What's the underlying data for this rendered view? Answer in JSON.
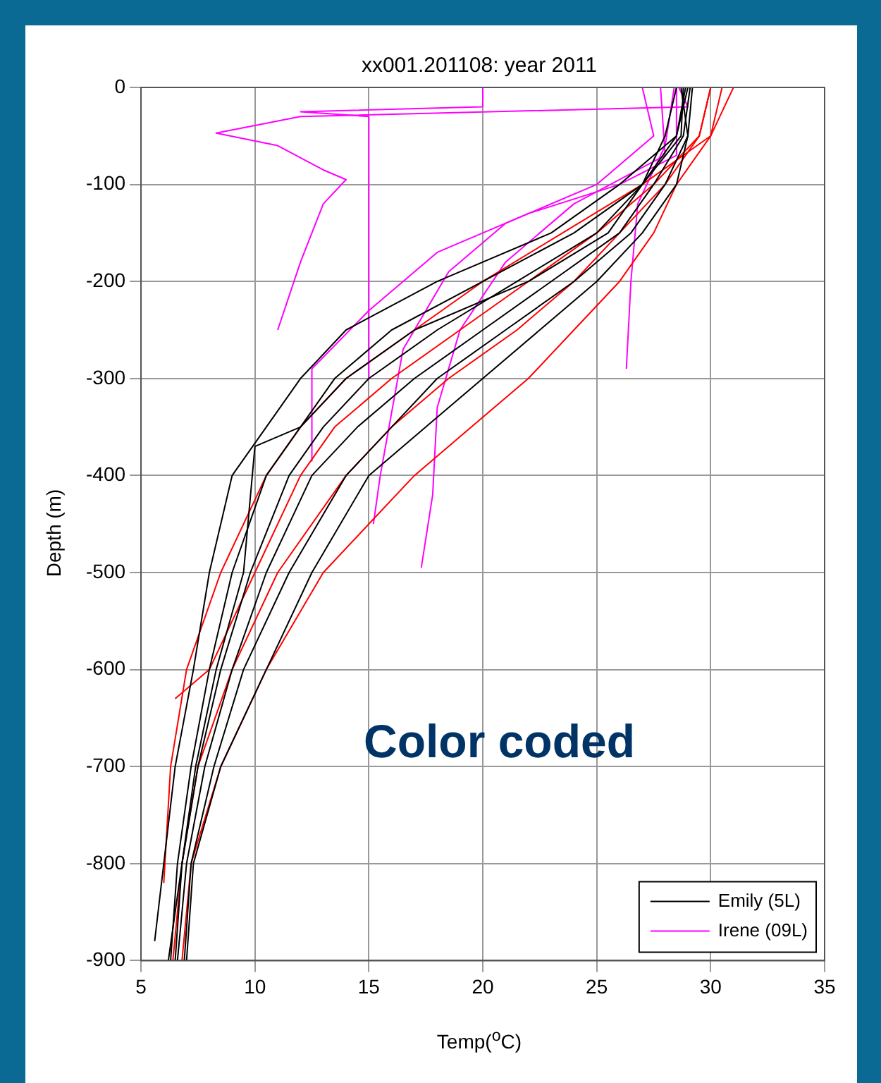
{
  "chart_data": {
    "type": "line",
    "title": "xx001.201108: year 2011",
    "xlabel": "Temp($^{o}$C)",
    "ylabel": "Depth (m)",
    "annotations": [
      "Color coded"
    ],
    "xlim": [
      5,
      35
    ],
    "xticks": [
      5,
      10,
      15,
      20,
      25,
      30,
      35
    ],
    "ylim": [
      -900,
      0
    ],
    "yticks": [
      -900,
      -800,
      -700,
      -600,
      -500,
      -400,
      -300,
      -200,
      -100,
      0
    ],
    "grid": true,
    "legend": "bottom right",
    "series": [
      {
        "name": "Emily (5L)",
        "color": "#000000",
        "x": [
          29,
          28.5,
          26,
          23,
          18,
          14,
          12,
          10.5,
          9,
          8,
          7.3,
          6.5,
          6,
          5.6
        ],
        "values": [
          0,
          -50,
          -100,
          -150,
          -200,
          -250,
          -300,
          -350,
          -400,
          -500,
          -600,
          -700,
          -800,
          -880
        ]
      },
      {
        "color": "#000000",
        "x": [
          28.9,
          28.5,
          27,
          24,
          20,
          16,
          13.5,
          12,
          10.5,
          9,
          8,
          7.2,
          6.6,
          6.3
        ],
        "values": [
          0,
          -50,
          -100,
          -150,
          -200,
          -250,
          -300,
          -350,
          -400,
          -500,
          -600,
          -700,
          -800,
          -900
        ]
      },
      {
        "color": "#000000",
        "x": [
          28.8,
          28.7,
          27,
          25,
          21.5,
          18,
          15,
          13,
          11.5,
          9.8,
          8.5,
          7.5,
          6.8,
          6.5
        ],
        "values": [
          0,
          -50,
          -100,
          -150,
          -200,
          -250,
          -300,
          -350,
          -400,
          -500,
          -600,
          -700,
          -800,
          -900
        ]
      },
      {
        "color": "#000000",
        "x": [
          29.1,
          28.8,
          27.5,
          26,
          23,
          20,
          17,
          14.5,
          12.5,
          10.5,
          9,
          7.8,
          7,
          6.6
        ],
        "values": [
          0,
          -50,
          -100,
          -150,
          -200,
          -250,
          -300,
          -350,
          -400,
          -500,
          -600,
          -700,
          -800,
          -900
        ]
      },
      {
        "color": "#000000",
        "x": [
          28.7,
          29,
          28,
          26.5,
          24,
          21,
          18,
          16,
          14,
          11.5,
          9.5,
          8.2,
          7.2,
          6.9
        ],
        "values": [
          0,
          -50,
          -100,
          -150,
          -200,
          -250,
          -300,
          -350,
          -400,
          -500,
          -600,
          -700,
          -800,
          -900
        ]
      },
      {
        "color": "#000000",
        "x": [
          29.2,
          29,
          28.5,
          27,
          25,
          22.5,
          20,
          17.5,
          15,
          12.5,
          10.5,
          8.5,
          7.3,
          7.0
        ],
        "values": [
          0,
          -50,
          -100,
          -150,
          -200,
          -250,
          -300,
          -350,
          -400,
          -500,
          -600,
          -700,
          -800,
          -900
        ]
      },
      {
        "color": "#000000",
        "x": [
          28.5,
          28,
          27,
          25.5,
          22,
          17,
          14,
          12,
          10,
          9.5,
          8.3,
          7.4,
          6.8,
          6.2
        ],
        "values": [
          0,
          -50,
          -100,
          -150,
          -200,
          -250,
          -300,
          -350,
          -370,
          -500,
          -600,
          -700,
          -800,
          -900
        ]
      },
      {
        "color": "#ff0000",
        "x": [
          31,
          30,
          27,
          23.5,
          20,
          17,
          14,
          12,
          10.5,
          8.5,
          7,
          6.3,
          6
        ],
        "values": [
          0,
          -50,
          -100,
          -150,
          -200,
          -250,
          -300,
          -350,
          -400,
          -500,
          -600,
          -700,
          -820
        ]
      },
      {
        "color": "#ff0000",
        "x": [
          30.5,
          30,
          28.5,
          27.5,
          26,
          24,
          22,
          19.5,
          17,
          13,
          10.5,
          8.5,
          7.2,
          6.8
        ],
        "values": [
          0,
          -50,
          -100,
          -150,
          -200,
          -250,
          -300,
          -350,
          -400,
          -500,
          -600,
          -700,
          -800,
          -900
        ]
      },
      {
        "color": "#ff0000",
        "x": [
          30,
          29.5,
          27.5,
          25,
          22,
          19,
          16,
          13.5,
          12,
          10,
          8,
          6.5
        ],
        "values": [
          0,
          -50,
          -100,
          -150,
          -200,
          -250,
          -300,
          -350,
          -400,
          -500,
          -600,
          -630
        ]
      },
      {
        "color": "#ff0000",
        "x": [
          30,
          29.5,
          28,
          26,
          24,
          21.5,
          18.5,
          16,
          14,
          11,
          9,
          7.5,
          6.8,
          6.4
        ],
        "values": [
          0,
          -50,
          -100,
          -150,
          -200,
          -250,
          -300,
          -350,
          -400,
          -500,
          -600,
          -700,
          -800,
          -900
        ]
      },
      {
        "name": "Irene (09L)",
        "color": "#ff00ff",
        "x": [
          28.6,
          29,
          12,
          8.3,
          11,
          13,
          14,
          13,
          12,
          11
        ],
        "values": [
          0,
          -20,
          -30,
          -47,
          -60,
          -85,
          -95,
          -120,
          -180,
          -250
        ]
      },
      {
        "color": "#ff00ff",
        "x": [
          28.5,
          28.5,
          26,
          22,
          18,
          15,
          12.5,
          12.5
        ],
        "values": [
          0,
          -70,
          -100,
          -130,
          -170,
          -230,
          -290,
          -385
        ]
      },
      {
        "color": "#ff00ff",
        "x": [
          28.4,
          28,
          26.8,
          26.5,
          26.3
        ],
        "values": [
          0,
          -60,
          -120,
          -200,
          -290
        ]
      },
      {
        "color": "#ff00ff",
        "x": [
          27.8,
          28,
          24,
          21,
          19,
          18,
          17.8,
          17.3
        ],
        "values": [
          0,
          -70,
          -120,
          -180,
          -250,
          -330,
          -420,
          -495
        ]
      },
      {
        "color": "#ff00ff",
        "x": [
          27,
          27.5,
          25,
          21,
          18.5,
          16.5,
          15.5,
          15.2
        ],
        "values": [
          0,
          -50,
          -100,
          -140,
          -190,
          -270,
          -400,
          -450
        ]
      },
      {
        "color": "#ff00ff",
        "x": [
          20,
          20,
          12,
          15,
          15
        ],
        "values": [
          0,
          -20,
          -25,
          -30,
          -300
        ]
      }
    ]
  }
}
